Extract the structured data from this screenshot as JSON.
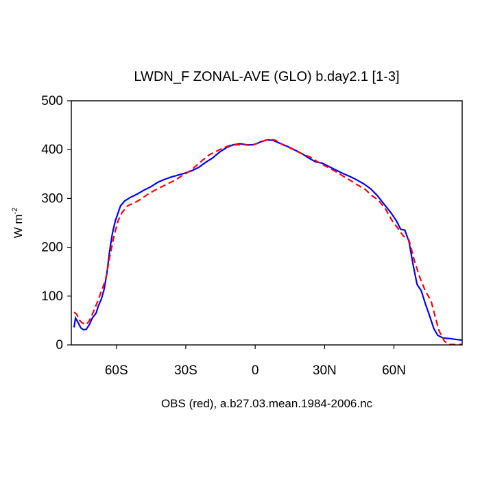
{
  "chart_data": {
    "type": "line",
    "title": "LWDN_F ZONAL-AVE (GLO) b.day2.1 [1-3]",
    "x_label": "OBS (red), a.b27.03.mean.1984-2006.nc",
    "y_label": {
      "base": "W m",
      "superscript": "-2"
    },
    "xlim": [
      -79.5,
      89.5
    ],
    "ylim": [
      0,
      500
    ],
    "xticks": [
      {
        "value": -60,
        "label": "60S"
      },
      {
        "value": -30,
        "label": "30S"
      },
      0,
      {
        "value": 30,
        "label": "30N"
      },
      {
        "value": 60,
        "label": "60N"
      }
    ],
    "yticks": [
      0,
      100,
      200,
      300,
      400,
      500
    ],
    "series": [
      {
        "color": "#0000ff",
        "dash": false,
        "x": [
          -78.3,
          -77.7,
          -76.6,
          -75.4,
          -74.2,
          -73,
          -71.8,
          -70.3,
          -68.8,
          -67.7,
          -66.5,
          -65.3,
          -64.1,
          -62.9,
          -61.7,
          -60.5,
          -59.3,
          -58.2,
          -56.4,
          -54,
          -51,
          -48.1,
          -45.1,
          -42.1,
          -39.2,
          -36.2,
          -33.2,
          -30.3,
          -27.3,
          -24.3,
          -21.4,
          -18.4,
          -15.4,
          -12.5,
          -9.5,
          -6.5,
          -3.6,
          -0.6,
          2.4,
          5.3,
          7.7,
          11.3,
          14.2,
          17.2,
          20.2,
          23.1,
          26.1,
          29.1,
          32,
          35,
          38,
          41,
          43.9,
          46.9,
          49.9,
          52.8,
          55.8,
          58.8,
          61.1,
          62.9,
          64.7,
          66.5,
          68.2,
          70,
          71.8,
          73.6,
          75.4,
          77.2,
          78.9,
          81.3,
          84.3,
          87.2,
          89.3
        ],
        "values": [
          36,
          55,
          46,
          35,
          31,
          32,
          41,
          56,
          65,
          81,
          94,
          114,
          147,
          194,
          229,
          254,
          270,
          285,
          295,
          302,
          309,
          317,
          324,
          333,
          339,
          344,
          348,
          352,
          357,
          364,
          374,
          383,
          395,
          404,
          410,
          412,
          410,
          410,
          416,
          420,
          419,
          412,
          406,
          399,
          392,
          383,
          375,
          372,
          365,
          358,
          351,
          345,
          338,
          330,
          320,
          306,
          288,
          270,
          254,
          237,
          235,
          212,
          166,
          124,
          111,
          84,
          60,
          34,
          20,
          14,
          13,
          11,
          10
        ]
      },
      {
        "color": "#ff0000",
        "dash": true,
        "x": [
          -78.3,
          -77.2,
          -76,
          -74.8,
          -73,
          -71.8,
          -70,
          -68.2,
          -66.5,
          -64.7,
          -62.9,
          -61.1,
          -59.3,
          -57.6,
          -55.2,
          -52.2,
          -49.3,
          -46.3,
          -43.3,
          -40.4,
          -37.4,
          -34.4,
          -31.5,
          -28.5,
          -25.5,
          -22.6,
          -19.6,
          -16.6,
          -13.6,
          -10.7,
          -7.7,
          -4.7,
          -1.8,
          1.2,
          4.2,
          6.5,
          8.9,
          11.9,
          14.8,
          17.8,
          20.8,
          23.7,
          26.7,
          29.7,
          32.6,
          35.6,
          38.6,
          41.5,
          44.5,
          47.5,
          50.4,
          53.4,
          56.4,
          59.3,
          61.7,
          64.1,
          66.5,
          68.8,
          71.2,
          73.6,
          76,
          77.7,
          79.5,
          81.9,
          84.3,
          87.2,
          89.3
        ],
        "values": [
          67,
          63,
          51,
          45,
          42,
          49,
          67,
          88,
          110,
          133,
          180,
          222,
          254,
          271,
          285,
          291,
          299,
          309,
          317,
          324,
          331,
          338,
          347,
          355,
          367,
          379,
          390,
          397,
          404,
          409,
          410,
          410,
          409,
          413,
          419,
          421,
          419,
          410,
          404,
          397,
          390,
          385,
          376,
          368,
          361,
          353,
          344,
          336,
          327,
          319,
          306,
          296,
          278,
          254,
          239,
          223,
          215,
          173,
          138,
          110,
          91,
          60,
          29,
          7,
          1,
          1,
          1
        ]
      }
    ]
  }
}
